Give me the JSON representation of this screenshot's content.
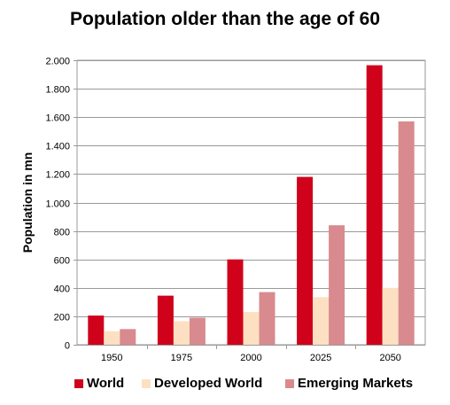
{
  "chart_data": {
    "type": "bar",
    "title": "Population older than the age of 60",
    "xlabel": "",
    "ylabel": "Population in mn",
    "categories": [
      "1950",
      "1975",
      "2000",
      "2025",
      "2050"
    ],
    "series": [
      {
        "name": "World",
        "values": [
          205,
          345,
          600,
          1180,
          1965
        ],
        "color": "#d0021b"
      },
      {
        "name": "Developed World",
        "values": [
          95,
          165,
          230,
          335,
          400
        ],
        "color": "#fde0c2"
      },
      {
        "name": "Emerging Markets",
        "values": [
          110,
          190,
          370,
          840,
          1570
        ],
        "color": "#d98a8e"
      }
    ],
    "ylim": [
      0,
      2000
    ],
    "yticks": [
      0,
      200,
      400,
      600,
      800,
      1000,
      1200,
      1400,
      1600,
      1800,
      2000
    ],
    "ytick_labels": [
      "0",
      "200",
      "400",
      "600",
      "800",
      "1.000",
      "1.200",
      "1.400",
      "1.600",
      "1.800",
      "2.000"
    ],
    "grid": true,
    "legend_position": "bottom"
  }
}
